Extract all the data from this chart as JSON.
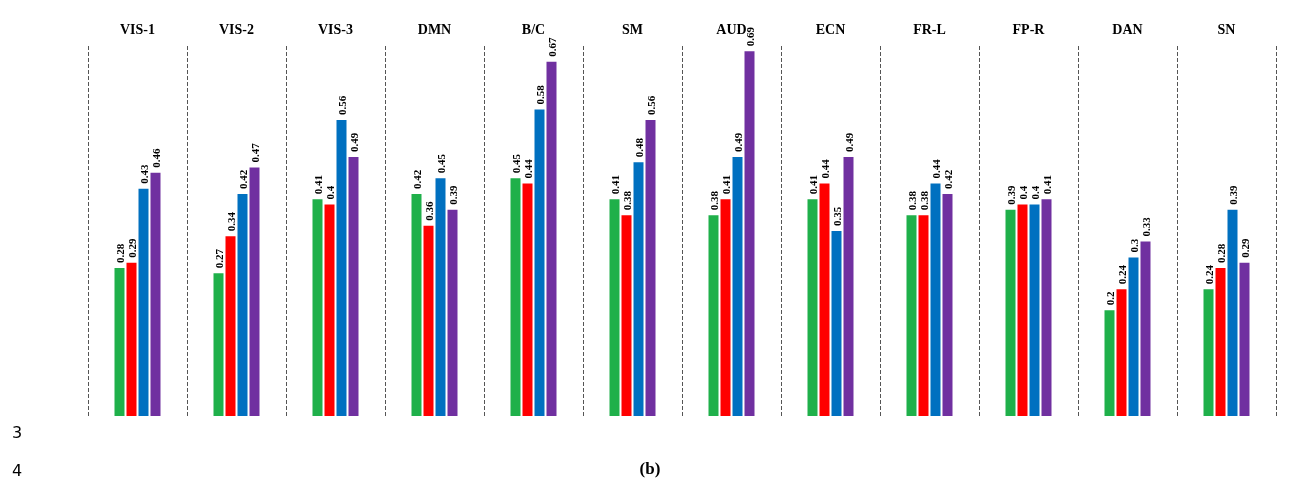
{
  "chart_data": {
    "type": "bar",
    "categories": [
      "VIS-1",
      "VIS-2",
      "VIS-3",
      "DMN",
      "B/C",
      "SM",
      "AUD",
      "ECN",
      "FR-L",
      "FP-R",
      "DAN",
      "SN"
    ],
    "series": [
      {
        "color": "#1fb04a",
        "values": [
          0.28,
          0.27,
          0.41,
          0.42,
          0.45,
          0.41,
          0.38,
          0.41,
          0.38,
          0.39,
          0.2,
          0.24
        ]
      },
      {
        "color": "#ff0000",
        "values": [
          0.29,
          0.34,
          0.4,
          0.36,
          0.44,
          0.38,
          0.41,
          0.44,
          0.38,
          0.4,
          0.24,
          0.28
        ]
      },
      {
        "color": "#0070c0",
        "values": [
          0.43,
          0.42,
          0.56,
          0.45,
          0.58,
          0.48,
          0.49,
          0.35,
          0.44,
          0.4,
          0.3,
          0.39
        ]
      },
      {
        "color": "#7030a0",
        "values": [
          0.46,
          0.47,
          0.49,
          0.39,
          0.67,
          0.56,
          0.69,
          0.49,
          0.42,
          0.41,
          0.33,
          0.29
        ]
      }
    ],
    "data_labels": true,
    "grid": "x",
    "annotations": [
      "3",
      "4",
      "(b)"
    ]
  }
}
